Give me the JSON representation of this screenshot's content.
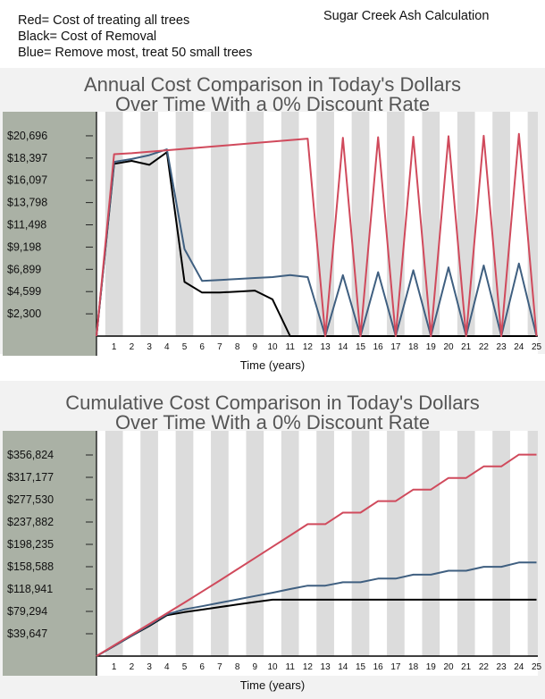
{
  "legend": {
    "red": "Red= Cost of treating all trees",
    "black": "Black= Cost of Removal",
    "blue": "Blue= Remove most, treat 50 small trees"
  },
  "app_title": "Sugar Creek Ash Calculation",
  "colors": {
    "red": "#d04a5c",
    "black": "#000000",
    "blue": "#3f5f80",
    "axis_bg": "#aab1a5",
    "band": "#dcdcdc",
    "panel": "#f2f2f2"
  },
  "chart_data": [
    {
      "type": "line",
      "title_line1": "Annual Cost Comparison in Today's Dollars",
      "title_line2": "Over Time With a 0% Discount Rate",
      "xlabel": "Time (years)",
      "ylim": [
        0,
        23000
      ],
      "ytick_labels": [
        "$2,300",
        "$4,599",
        "$6,899",
        "$9,198",
        "$11,498",
        "$13,798",
        "$16,097",
        "$18,397",
        "$20,696"
      ],
      "ytick_values": [
        2300,
        4599,
        6899,
        9198,
        11498,
        13798,
        16097,
        18397,
        20696
      ],
      "x_ticks": [
        1,
        2,
        3,
        4,
        5,
        6,
        7,
        8,
        9,
        10,
        11,
        12,
        13,
        14,
        15,
        16,
        17,
        18,
        19,
        20,
        21,
        22,
        23,
        24,
        25
      ],
      "series": [
        {
          "color": "red",
          "x": [
            0,
            1,
            2,
            3,
            4,
            5,
            6,
            7,
            8,
            9,
            10,
            11,
            12,
            13,
            14,
            15,
            16,
            17,
            18,
            19,
            20,
            21,
            22,
            23,
            24,
            25
          ],
          "values": [
            0,
            18800,
            18900,
            19050,
            19200,
            19350,
            19500,
            19650,
            19800,
            19950,
            20100,
            20250,
            20400,
            0,
            20500,
            0,
            20550,
            0,
            20600,
            0,
            20650,
            0,
            20700,
            0,
            20900,
            0
          ]
        },
        {
          "color": "blue",
          "x": [
            0,
            1,
            2,
            3,
            4,
            5,
            6,
            7,
            8,
            9,
            10,
            11,
            12,
            13,
            14,
            15,
            16,
            17,
            18,
            19,
            20,
            21,
            22,
            23,
            24,
            25
          ],
          "values": [
            0,
            18000,
            18300,
            18700,
            19300,
            9000,
            5700,
            5800,
            5900,
            6000,
            6100,
            6300,
            6100,
            0,
            6300,
            0,
            6600,
            0,
            6800,
            0,
            7100,
            0,
            7300,
            0,
            7500,
            0
          ]
        },
        {
          "color": "black",
          "x": [
            0,
            1,
            2,
            3,
            4,
            5,
            6,
            7,
            8,
            9,
            10,
            11,
            12,
            13,
            14,
            15,
            16,
            17,
            18,
            19,
            20,
            21,
            22,
            23,
            24,
            25
          ],
          "values": [
            0,
            17800,
            18100,
            17700,
            19000,
            5600,
            4500,
            4500,
            4600,
            4700,
            3800,
            0,
            0,
            0,
            0,
            0,
            0,
            0,
            0,
            0,
            0,
            0,
            0,
            0,
            0,
            0
          ]
        }
      ]
    },
    {
      "type": "line",
      "title_line1": "Cumulative Cost Comparison in Today's Dollars",
      "title_line2": "Over Time With a 0% Discount Rate",
      "xlabel": "Time (years)",
      "ylim": [
        0,
        396470
      ],
      "ytick_labels": [
        "$39,647",
        "$79,294",
        "$118,941",
        "$158,588",
        "$198,235",
        "$237,882",
        "$277,530",
        "$317,177",
        "$356,824"
      ],
      "ytick_values": [
        39647,
        79294,
        118941,
        158588,
        198235,
        237882,
        277530,
        317177,
        356824
      ],
      "x_ticks": [
        1,
        2,
        3,
        4,
        5,
        6,
        7,
        8,
        9,
        10,
        11,
        12,
        13,
        14,
        15,
        16,
        17,
        18,
        19,
        20,
        21,
        22,
        23,
        24,
        25
      ],
      "series": [
        {
          "color": "red",
          "x": [
            0,
            1,
            2,
            3,
            4,
            5,
            6,
            7,
            8,
            9,
            10,
            11,
            12,
            13,
            14,
            15,
            16,
            17,
            18,
            19,
            20,
            21,
            22,
            23,
            24,
            25
          ],
          "values": [
            0,
            19000,
            38000,
            57000,
            76000,
            95000,
            114500,
            134000,
            154000,
            174000,
            194000,
            214000,
            234000,
            234000,
            254500,
            254500,
            275000,
            275000,
            295500,
            295500,
            316000,
            316000,
            336500,
            336500,
            357500,
            357500
          ]
        },
        {
          "color": "blue",
          "x": [
            0,
            1,
            2,
            3,
            4,
            5,
            6,
            7,
            8,
            9,
            10,
            11,
            12,
            13,
            14,
            15,
            16,
            17,
            18,
            19,
            20,
            21,
            22,
            23,
            24,
            25
          ],
          "values": [
            0,
            18000,
            36500,
            55000,
            74000,
            83000,
            88500,
            94500,
            100500,
            106500,
            112500,
            119000,
            125000,
            125000,
            131000,
            131000,
            137500,
            137500,
            144500,
            144500,
            151500,
            151500,
            158500,
            158500,
            166000,
            166000
          ]
        },
        {
          "color": "black",
          "x": [
            0,
            1,
            2,
            3,
            4,
            5,
            6,
            7,
            8,
            9,
            10,
            11,
            12,
            13,
            14,
            15,
            16,
            17,
            18,
            19,
            20,
            21,
            22,
            23,
            24,
            25
          ],
          "values": [
            0,
            17800,
            36000,
            53500,
            72500,
            78000,
            82500,
            87000,
            91500,
            96000,
            100000,
            100000,
            100000,
            100000,
            100000,
            100000,
            100000,
            100000,
            100000,
            100000,
            100000,
            100000,
            100000,
            100000,
            100000,
            100000
          ]
        }
      ]
    }
  ]
}
